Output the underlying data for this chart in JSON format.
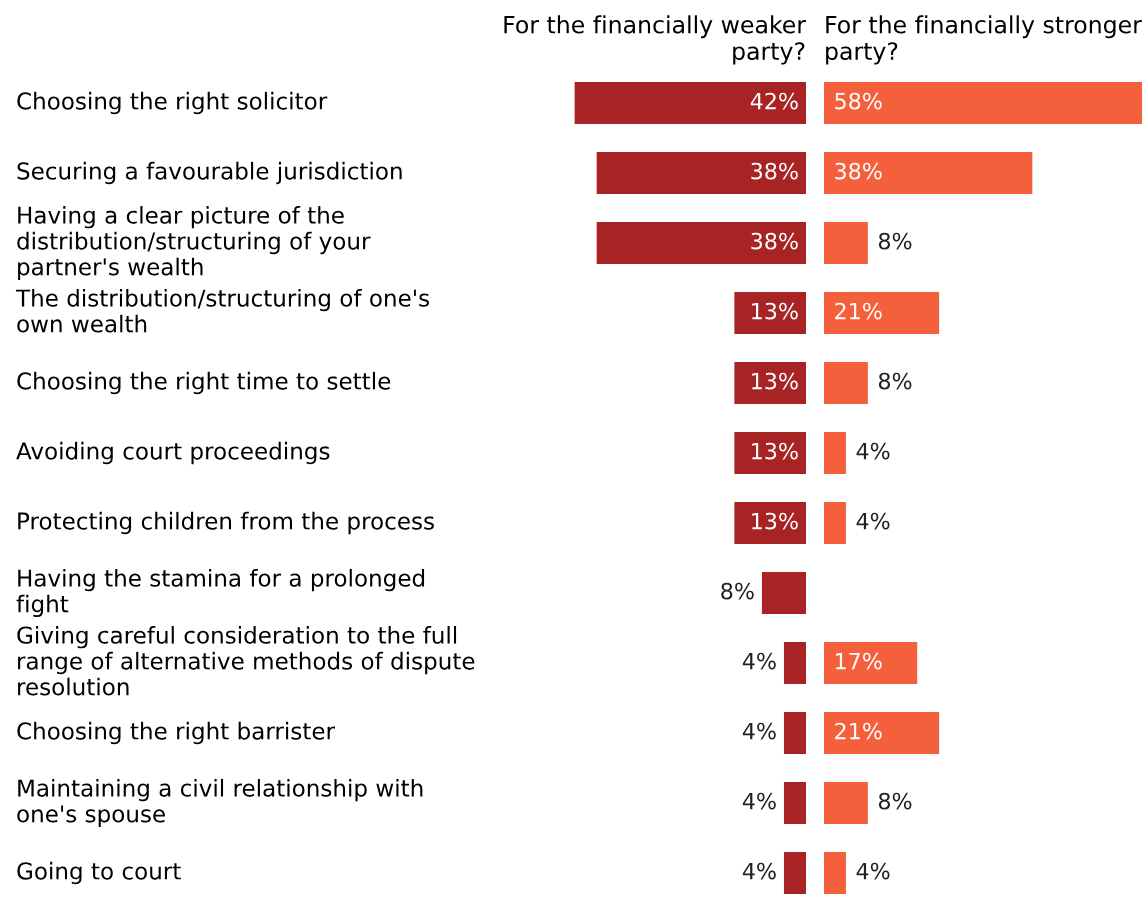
{
  "chart_data": [
    {
      "type": "bar",
      "orientation": "horizontal",
      "title": "For the financially weaker\nparty?",
      "categories": [
        "Choosing the right solicitor",
        "Securing a favourable jurisdiction",
        "Having a clear picture of the\ndistribution/structuring of your\npartner's wealth",
        "The distribution/structuring of one's\nown wealth",
        "Choosing the right time to settle",
        "Avoiding court proceedings",
        "Protecting children from the process",
        "Having the stamina for a prolonged\nfight",
        "Giving careful consideration to the full\nrange of alternative methods of dispute\nresolution",
        "Choosing the right barrister",
        "Maintaining a civil relationship with\none's spouse",
        "Going to court"
      ],
      "values": [
        42,
        38,
        38,
        13,
        13,
        13,
        13,
        8,
        4,
        4,
        4,
        4
      ],
      "value_labels": [
        "42%",
        "38%",
        "38%",
        "13%",
        "13%",
        "13%",
        "13%",
        "8%",
        "4%",
        "4%",
        "4%",
        "4%"
      ],
      "color": "#a82424",
      "tick_labels": "y",
      "grid": false,
      "legend": false
    },
    {
      "type": "bar",
      "orientation": "horizontal",
      "title": "For the financially stronger\nparty?",
      "categories": [
        null,
        null,
        null,
        null,
        null,
        null,
        null,
        null,
        null,
        null,
        null,
        null
      ],
      "values": [
        58,
        38,
        8,
        21,
        8,
        4,
        4,
        null,
        17,
        21,
        8,
        4
      ],
      "value_labels": [
        "58%",
        "38%",
        "8%",
        "21%",
        "8%",
        "4%",
        "4%",
        null,
        "17%",
        "21%",
        "8%",
        "4%"
      ],
      "color": "#f5603c",
      "tick_labels": false,
      "grid": false,
      "legend": false
    }
  ]
}
